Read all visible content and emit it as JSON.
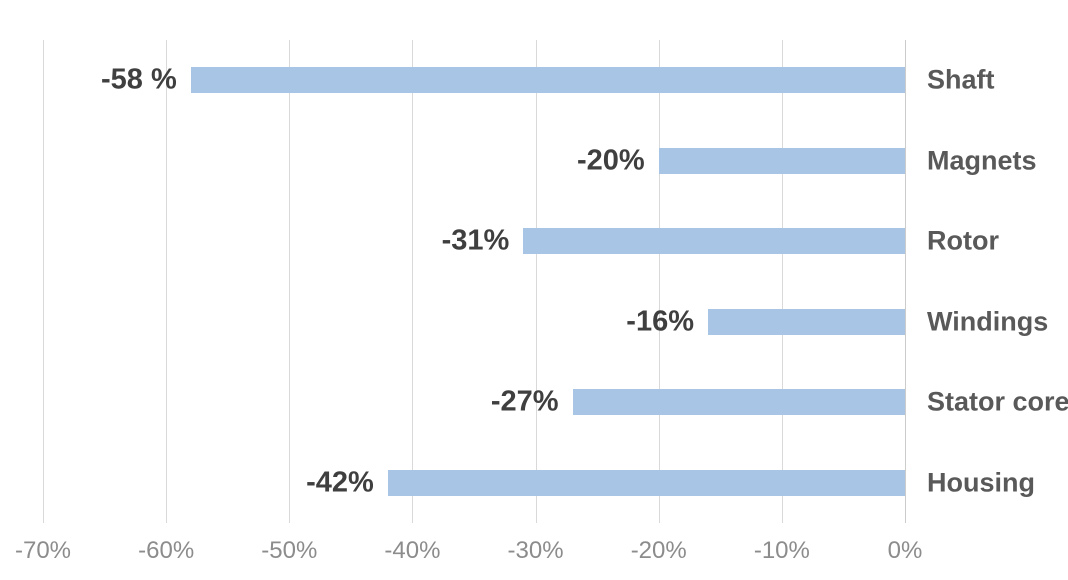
{
  "chart_data": {
    "type": "bar",
    "orientation": "horizontal",
    "title": "",
    "xlabel": "",
    "ylabel": "",
    "xlim": [
      -70,
      0
    ],
    "grid": true,
    "legend": false,
    "categories": [
      "Shaft",
      "Magnets",
      "Rotor",
      "Windings",
      "Stator core",
      "Housing"
    ],
    "values": [
      -58,
      -20,
      -31,
      -16,
      -27,
      -42
    ],
    "data_labels": [
      "-58 %",
      "-20%",
      "-31%",
      "-16%",
      "-27%",
      "-42%"
    ],
    "x_tick_labels": [
      "-70%",
      "-60%",
      "-50%",
      "-40%",
      "-30%",
      "-20%",
      "-10%",
      "0%"
    ],
    "colors": {
      "bar_fill": "#a8c5e5",
      "gridline": "#d9d9d9",
      "zero_line": "#cccccc",
      "value_label": "#3f3f3f",
      "category_label": "#595959",
      "tick_label": "#8c8c8c",
      "background": "#ffffff"
    }
  }
}
